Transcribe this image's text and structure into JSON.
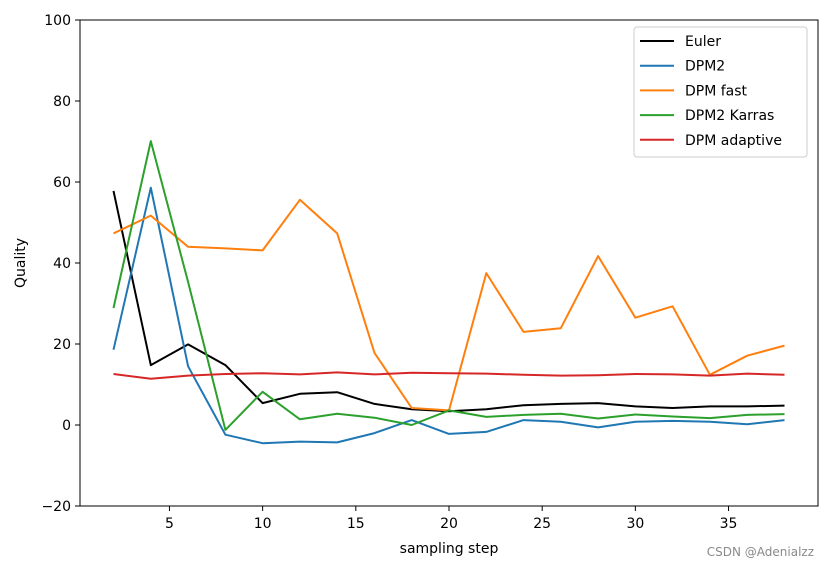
{
  "chart_data": {
    "type": "line",
    "title": "",
    "xlabel": "sampling step",
    "ylabel": "Quality",
    "xlim": [
      0.2,
      39.8
    ],
    "ylim": [
      -20,
      100
    ],
    "xticks": [
      5,
      10,
      15,
      20,
      25,
      30,
      35
    ],
    "yticks": [
      -20,
      0,
      20,
      40,
      60,
      80,
      100
    ],
    "grid": false,
    "legend_position": "top-right",
    "x": [
      2,
      4,
      6,
      8,
      10,
      12,
      14,
      16,
      18,
      20,
      22,
      24,
      26,
      28,
      30,
      32,
      34,
      36,
      38
    ],
    "series": [
      {
        "name": "Euler",
        "color": "#000000",
        "values": [
          57.8,
          14.8,
          19.9,
          14.8,
          5.4,
          7.7,
          8.1,
          5.2,
          3.9,
          3.4,
          3.9,
          4.9,
          5.2,
          5.4,
          4.6,
          4.2,
          4.6,
          4.6,
          4.8
        ]
      },
      {
        "name": "DPM2",
        "color": "#1f77b4",
        "values": [
          18.6,
          58.6,
          14.5,
          -2.4,
          -4.5,
          -4.1,
          -4.3,
          -2.0,
          1.2,
          -2.2,
          -1.7,
          1.2,
          0.8,
          -0.6,
          0.8,
          1.0,
          0.8,
          0.2,
          1.2
        ]
      },
      {
        "name": "DPM fast",
        "color": "#ff7f0e",
        "values": [
          47.3,
          51.7,
          44.0,
          43.6,
          43.1,
          55.6,
          47.3,
          17.8,
          4.2,
          3.6,
          37.5,
          23.0,
          23.9,
          41.7,
          26.5,
          29.3,
          12.4,
          17.1,
          19.6
        ]
      },
      {
        "name": "DPM2 Karras",
        "color": "#2ca02c",
        "values": [
          28.9,
          70.1,
          35.3,
          -1.2,
          8.2,
          1.4,
          2.8,
          1.8,
          0.0,
          3.6,
          2.0,
          2.5,
          2.8,
          1.6,
          2.6,
          2.1,
          1.7,
          2.5,
          2.7
        ]
      },
      {
        "name": "DPM adaptive",
        "color": "#d62728",
        "values": [
          12.6,
          11.4,
          12.2,
          12.6,
          12.8,
          12.5,
          13.0,
          12.5,
          12.9,
          12.8,
          12.7,
          12.4,
          12.2,
          12.3,
          12.6,
          12.5,
          12.2,
          12.7,
          12.4
        ]
      }
    ]
  },
  "watermark": "CSDN @Adenialzz"
}
